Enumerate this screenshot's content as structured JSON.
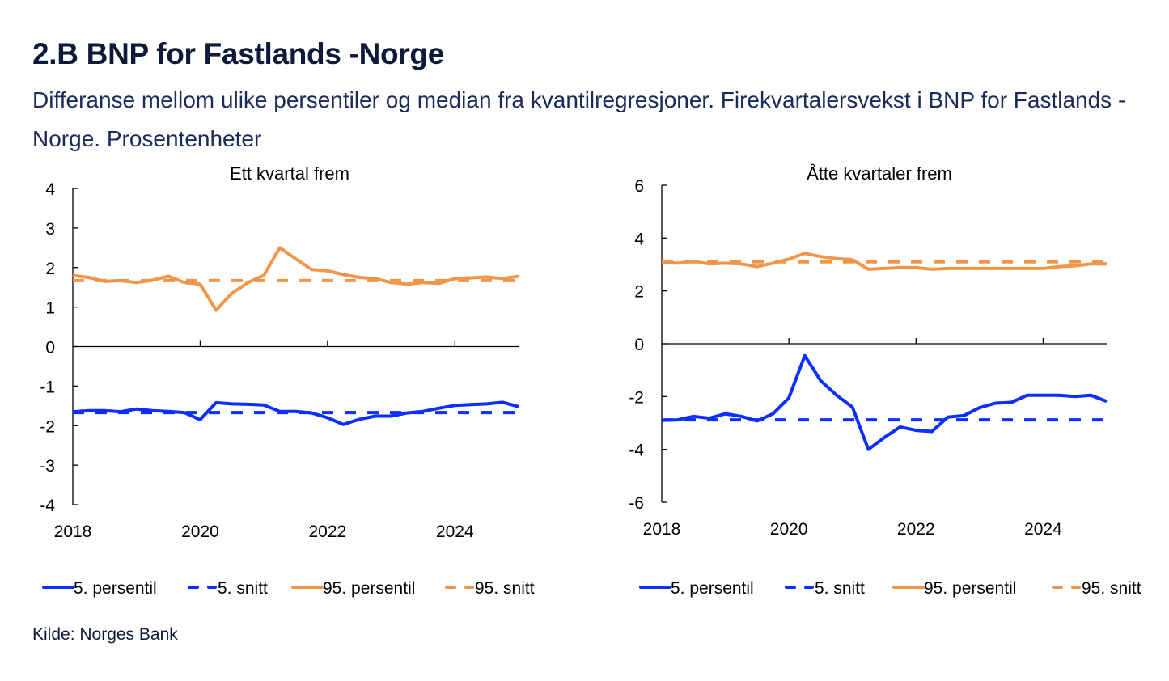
{
  "header": {
    "title": "2.B BNP for Fastlands -Norge",
    "subtitle": "Differanse mellom ulike persentiler og median fra kvantilregresjoner. Firekvartalersvekst i BNP for Fastlands -Norge. Prosentenheter"
  },
  "footer": {
    "source": "Kilde: Norges Bank"
  },
  "colors": {
    "blue": "#0a2fff",
    "orange": "#f0954a",
    "text": "#0d1a3a"
  },
  "chart_data": [
    {
      "type": "line",
      "title": "Ett kvartal frem",
      "xlabel": "",
      "ylabel": "",
      "x_start": "2018Q1",
      "x_ticks": [
        "2018",
        "2020",
        "2022",
        "2024"
      ],
      "ylim": [
        -4,
        4
      ],
      "y_ticks": [
        "4",
        "3",
        "2",
        "1",
        "0",
        "-1",
        "-2",
        "-3",
        "-4"
      ],
      "y_tick_values": [
        4,
        3,
        2,
        1,
        0,
        -1,
        -2,
        -3,
        -4
      ],
      "grid": false,
      "legend_position": "bottom",
      "series": [
        {
          "name": "5. persentil",
          "color": "#0a2fff",
          "dashed": false,
          "values": [
            -1.65,
            -1.62,
            -1.62,
            -1.65,
            -1.58,
            -1.62,
            -1.64,
            -1.67,
            -1.85,
            -1.42,
            -1.45,
            -1.46,
            -1.48,
            -1.64,
            -1.64,
            -1.68,
            -1.8,
            -1.97,
            -1.84,
            -1.76,
            -1.76,
            -1.68,
            -1.64,
            -1.56,
            -1.49,
            -1.47,
            -1.45,
            -1.41,
            -1.52
          ]
        },
        {
          "name": "5. snitt",
          "color": "#0a2fff",
          "dashed": true,
          "values": [
            -1.67,
            -1.67,
            -1.67,
            -1.67,
            -1.67,
            -1.67,
            -1.67,
            -1.67,
            -1.67,
            -1.67,
            -1.67,
            -1.67,
            -1.67,
            -1.67,
            -1.67,
            -1.67,
            -1.67,
            -1.67,
            -1.67,
            -1.67,
            -1.67,
            -1.67,
            -1.67,
            -1.67,
            -1.67,
            -1.67,
            -1.67,
            -1.67,
            -1.67
          ]
        },
        {
          "name": "95. persentil",
          "color": "#f0954a",
          "dashed": false,
          "values": [
            1.8,
            1.75,
            1.65,
            1.67,
            1.62,
            1.68,
            1.78,
            1.62,
            1.58,
            0.92,
            1.35,
            1.62,
            1.8,
            2.5,
            2.22,
            1.95,
            1.92,
            1.82,
            1.75,
            1.72,
            1.62,
            1.58,
            1.62,
            1.6,
            1.72,
            1.74,
            1.76,
            1.72,
            1.78
          ]
        },
        {
          "name": "95. snitt",
          "color": "#f0954a",
          "dashed": true,
          "values": [
            1.67,
            1.67,
            1.67,
            1.67,
            1.67,
            1.67,
            1.67,
            1.67,
            1.67,
            1.67,
            1.67,
            1.67,
            1.67,
            1.67,
            1.67,
            1.67,
            1.67,
            1.67,
            1.67,
            1.67,
            1.67,
            1.67,
            1.67,
            1.67,
            1.67,
            1.67,
            1.67,
            1.67,
            1.67
          ]
        }
      ]
    },
    {
      "type": "line",
      "title": "Åtte kvartaler frem",
      "xlabel": "",
      "ylabel": "",
      "x_start": "2018Q1",
      "x_ticks": [
        "2018",
        "2020",
        "2022",
        "2024"
      ],
      "ylim": [
        -6,
        6
      ],
      "y_ticks": [
        "6",
        "4",
        "2",
        "0",
        "-2",
        "-4",
        "-6"
      ],
      "y_tick_values": [
        6,
        4,
        2,
        0,
        -2,
        -4,
        -6
      ],
      "grid": false,
      "legend_position": "bottom",
      "series": [
        {
          "name": "5. persentil",
          "color": "#0a2fff",
          "dashed": false,
          "values": [
            -2.9,
            -2.88,
            -2.75,
            -2.82,
            -2.65,
            -2.75,
            -2.92,
            -2.65,
            -2.05,
            -0.45,
            -1.4,
            -1.95,
            -2.4,
            -4.0,
            -3.55,
            -3.15,
            -3.28,
            -3.32,
            -2.78,
            -2.72,
            -2.42,
            -2.25,
            -2.22,
            -1.95,
            -1.95,
            -1.95,
            -2.0,
            -1.95,
            -2.18
          ]
        },
        {
          "name": "5. snitt",
          "color": "#0a2fff",
          "dashed": true,
          "values": [
            -2.88,
            -2.88,
            -2.88,
            -2.88,
            -2.88,
            -2.88,
            -2.88,
            -2.88,
            -2.88,
            -2.88,
            -2.88,
            -2.88,
            -2.88,
            -2.88,
            -2.88,
            -2.88,
            -2.88,
            -2.88,
            -2.88,
            -2.88,
            -2.88,
            -2.88,
            -2.88,
            -2.88,
            -2.88,
            -2.88,
            -2.88,
            -2.88,
            -2.88
          ]
        },
        {
          "name": "95. persentil",
          "color": "#f0954a",
          "dashed": false,
          "values": [
            3.08,
            3.05,
            3.12,
            3.02,
            3.05,
            3.02,
            2.92,
            3.05,
            3.2,
            3.42,
            3.3,
            3.22,
            3.18,
            2.82,
            2.85,
            2.88,
            2.88,
            2.82,
            2.85,
            2.85,
            2.85,
            2.85,
            2.85,
            2.85,
            2.85,
            2.92,
            2.95,
            3.02,
            3.02
          ]
        },
        {
          "name": "95. snitt",
          "color": "#f0954a",
          "dashed": true,
          "values": [
            3.1,
            3.1,
            3.1,
            3.1,
            3.1,
            3.1,
            3.1,
            3.1,
            3.1,
            3.1,
            3.1,
            3.1,
            3.1,
            3.1,
            3.1,
            3.1,
            3.1,
            3.1,
            3.1,
            3.1,
            3.1,
            3.1,
            3.1,
            3.1,
            3.1,
            3.1,
            3.1,
            3.1,
            3.1
          ]
        }
      ]
    }
  ]
}
